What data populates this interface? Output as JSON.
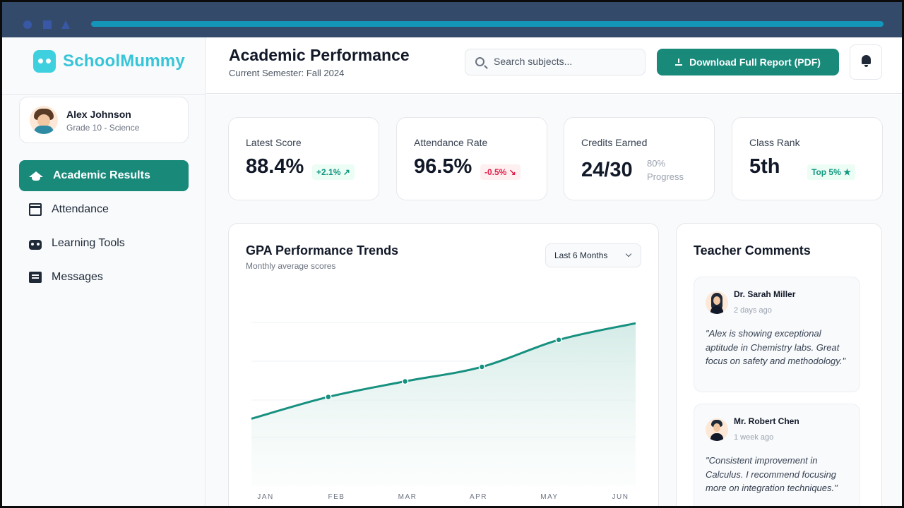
{
  "sidebar": {
    "logo": "SchoolMummy",
    "profile": {
      "name": "Alex Johnson",
      "subtitle": "Grade 10 - Science"
    },
    "nav": [
      {
        "label": "Academic Results",
        "icon": "graduation-cap-icon",
        "active": true
      },
      {
        "label": "Attendance",
        "icon": "calendar-icon",
        "active": false
      },
      {
        "label": "Learning Tools",
        "icon": "robot-icon",
        "active": false
      },
      {
        "label": "Messages",
        "icon": "message-icon",
        "active": false
      }
    ]
  },
  "header": {
    "title": "Academic Performance",
    "subtitle": "Current Semester: Fall 2024",
    "search_placeholder": "Search subjects...",
    "download_label": "Download Full Report (PDF)",
    "bell_icon": "bell-icon"
  },
  "stats": [
    {
      "label": "Latest Score",
      "value": "88.4%",
      "badge": "+2.1% ↗",
      "trend": "up"
    },
    {
      "label": "Attendance Rate",
      "value": "96.5%",
      "badge": "-0.5% ↘",
      "trend": "down"
    },
    {
      "label": "Credits Earned",
      "value": "24/30",
      "note_line1": "80%",
      "note_line2": "Progress"
    },
    {
      "label": "Class Rank",
      "value": "5th",
      "badge": "Top 5% ★",
      "trend": "up"
    }
  ],
  "trend": {
    "title": "GPA Performance Trends",
    "subtitle": "Monthly average scores",
    "range": "Last 6 Months"
  },
  "chart_data": {
    "type": "area",
    "title": "GPA Performance Trends",
    "categories": [
      "JAN",
      "FEB",
      "MAR",
      "APR",
      "MAY",
      "JUN"
    ],
    "series": [
      {
        "name": "Monthly average score",
        "values": [
          83.0,
          85.1,
          86.6,
          88.0,
          90.6,
          92.2
        ]
      }
    ],
    "ylim": [
      78,
      95
    ],
    "grid": true,
    "colors": {
      "line": "#16907f",
      "fill": "#d8efeb"
    }
  },
  "comments": {
    "title": "Teacher Comments",
    "items": [
      {
        "name": "Dr. Sarah Miller",
        "time": "2 days ago",
        "text": "\"Alex is showing exceptional aptitude in Chemistry labs. Great focus on safety and methodology.\""
      },
      {
        "name": "Mr. Robert Chen",
        "time": "1 week ago",
        "text": "\"Consistent improvement in Calculus. I recommend focusing more on integration techniques.\""
      }
    ]
  },
  "colors": {
    "brand": "#36c5d8",
    "accent": "#19897a",
    "up": "#10977f",
    "down": "#e11d48"
  }
}
